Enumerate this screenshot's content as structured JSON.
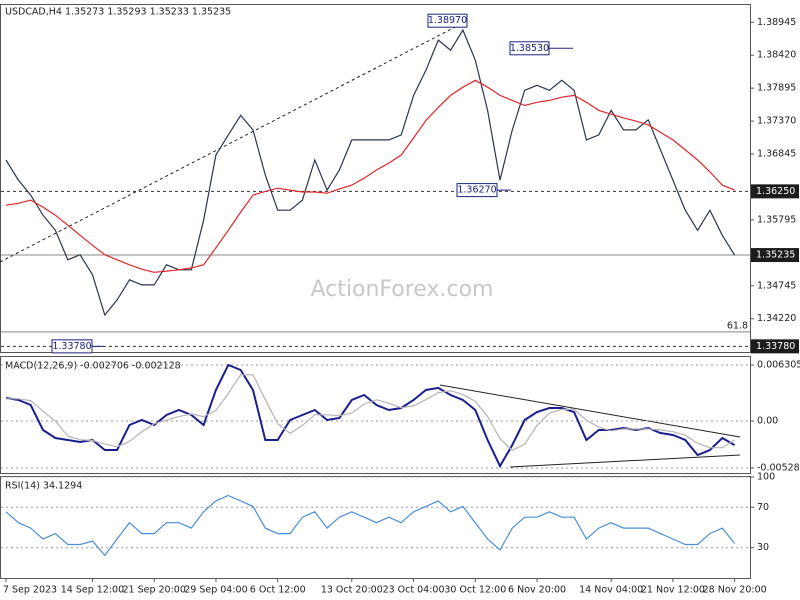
{
  "chart_data": [
    {
      "type": "line",
      "title": "USDCAD,H4  1.35273 1.35293 1.35233 1.35235",
      "watermark": "ActionForex.com",
      "series": [
        {
          "color": "#2b3550",
          "values": [
            1.3675,
            1.3643,
            1.3619,
            1.3587,
            1.3563,
            1.3516,
            1.3524,
            1.3492,
            1.3428,
            1.3452,
            1.3484,
            1.3476,
            1.3476,
            1.3508,
            1.35,
            1.35,
            1.3579,
            1.3683,
            1.3715,
            1.3746,
            1.3723,
            1.3651,
            1.3595,
            1.3595,
            1.3611,
            1.3675,
            1.3627,
            1.3659,
            1.3707,
            1.3707,
            1.3707,
            1.3707,
            1.3715,
            1.3778,
            1.3818,
            1.3866,
            1.385,
            1.3882,
            1.3834,
            1.3754,
            1.3643,
            1.3723,
            1.3786,
            1.3794,
            1.3786,
            1.3802,
            1.3786,
            1.3707,
            1.3715,
            1.3754,
            1.3723,
            1.3723,
            1.3739,
            1.3691,
            1.3643,
            1.3595,
            1.3563,
            1.3595,
            1.3555,
            1.35235
          ]
        },
        {
          "color": "#e0262b",
          "values": [
            1.3603,
            1.3606,
            1.3611,
            1.36,
            1.3587,
            1.3571,
            1.3555,
            1.3539,
            1.3524,
            1.3516,
            1.3508,
            1.3501,
            1.3496,
            1.3498,
            1.35,
            1.3503,
            1.3508,
            1.3535,
            1.3563,
            1.3592,
            1.3619,
            1.3625,
            1.363,
            1.3627,
            1.3624,
            1.3624,
            1.3622,
            1.3629,
            1.3635,
            1.3646,
            1.3659,
            1.367,
            1.3683,
            1.371,
            1.3738,
            1.3759,
            1.3778,
            1.3791,
            1.3802,
            1.3791,
            1.3778,
            1.377,
            1.3762,
            1.3767,
            1.377,
            1.3775,
            1.3778,
            1.3767,
            1.3754,
            1.3748,
            1.3742,
            1.3737,
            1.3731,
            1.3719,
            1.3707,
            1.3691,
            1.3675,
            1.3656,
            1.3635,
            1.3627
          ]
        }
      ],
      "ylim": [
        1.3369,
        1.3922
      ],
      "yticks": [
        1.38945,
        {
          "value": 1.3842,
          "label": "1.38420"
        },
        1.37895,
        {
          "value": 1.3737,
          "label": "1.37370"
        },
        1.36845,
        1.35795,
        1.34745,
        {
          "value": 1.3422,
          "label": "1.34220"
        }
      ],
      "grid": false,
      "levels": [
        {
          "value": 1.3625,
          "label": "1.36250",
          "style": "dashed",
          "box": true
        },
        {
          "value": 1.35235,
          "label": "1.35235",
          "style": "solid",
          "box": true
        },
        {
          "value": 1.3401,
          "label": "61.8",
          "style": "solid",
          "box": false
        },
        {
          "value": 1.3378,
          "label": "1.33780",
          "style": "dashed",
          "box": true
        }
      ],
      "annotations": [
        {
          "value": 1.3897,
          "label": "1.38970"
        },
        {
          "value": 1.3853,
          "label": "1.38530"
        },
        {
          "value": 1.3627,
          "label": "1.36270"
        },
        {
          "value": 1.3378,
          "label": "1.33780"
        }
      ]
    },
    {
      "type": "line",
      "title": "MACD(12,26,9) -0.002706 -0.002128",
      "series": [
        {
          "color": "#1a1f8f",
          "values": [
            0.00259,
            0.00236,
            0.0018,
            -0.00101,
            -0.00191,
            -0.00214,
            -0.00236,
            -0.00214,
            -0.00326,
            -0.00326,
            -0.00045,
            0.00011,
            -0.00045,
            0.00068,
            0.00124,
            0.00068,
            -0.00045,
            0.00349,
            0.0063,
            0.00574,
            0.00349,
            -0.00214,
            -0.00214,
            0.00011,
            0.00068,
            0.00124,
            0.00011,
            0.00034,
            0.00236,
            0.00293,
            0.0018,
            0.00124,
            0.00146,
            0.00236,
            0.00349,
            0.00372,
            0.00293,
            0.00236,
            0.00124,
            -0.00214,
            -0.00507,
            -0.0027,
            0.00011,
            0.00101,
            0.00146,
            0.00146,
            0.00101,
            -0.00214,
            -0.00101,
            -0.00101,
            -0.00079,
            -0.00101,
            -0.00079,
            -0.00135,
            -0.00158,
            -0.00214,
            -0.00383,
            -0.00326,
            -0.00191,
            -0.002706
          ]
        },
        {
          "color": "#b4b4b4",
          "values": [
            0.0025,
            0.0025,
            0.0023,
            0.0011,
            0.0,
            -0.0017,
            -0.0021,
            -0.0022,
            -0.0026,
            -0.0029,
            -0.0023,
            -0.0012,
            -0.0003,
            0.0001,
            0.0005,
            0.0008,
            0.0005,
            0.0012,
            0.0031,
            0.0052,
            0.0052,
            0.0024,
            -0.0003,
            -0.0014,
            -0.0005,
            0.0007,
            0.0007,
            0.0006,
            0.0009,
            0.0019,
            0.0024,
            0.002,
            0.0015,
            0.0017,
            0.0024,
            0.0032,
            0.0034,
            0.003,
            0.0022,
            0.0005,
            -0.002,
            -0.0033,
            -0.0026,
            -0.0005,
            0.0009,
            0.0013,
            0.0013,
            0.0001,
            -0.0007,
            -0.0011,
            -0.0009,
            -0.0009,
            -0.0009,
            -0.001,
            -0.0012,
            -0.0016,
            -0.0025,
            -0.003,
            -0.003,
            -0.002128
          ]
        }
      ],
      "ylim": [
        -0.00585,
        0.0072
      ],
      "yticks": [
        0.006305,
        {
          "value": 0,
          "label": "0.00"
        },
        -0.005283
      ],
      "grid": true
    },
    {
      "type": "line",
      "title": "RSI(14) 34.1294",
      "categories": [
        "7 Sep 2023",
        null,
        null,
        null,
        null,
        null,
        null,
        "14 Sep 12:00",
        null,
        null,
        null,
        null,
        "21 Sep 20:00",
        null,
        null,
        null,
        null,
        "29 Sep 04:00",
        null,
        null,
        null,
        null,
        "6 Oct 12:00",
        null,
        null,
        null,
        null,
        null,
        "13 Oct 20:00",
        null,
        null,
        null,
        null,
        "23 Oct 04:00",
        null,
        null,
        null,
        null,
        "30 Oct 12:00",
        null,
        null,
        null,
        null,
        "6 Nov 20:00",
        null,
        null,
        null,
        null,
        null,
        "14 Nov 04:00",
        null,
        null,
        null,
        null,
        "21 Nov 12:00",
        null,
        null,
        null,
        null,
        "28 Nov 20:00"
      ],
      "series": [
        {
          "color": "#4a8fd8",
          "values": [
            65.5,
            54.8,
            49.4,
            38.6,
            44,
            33.2,
            33.2,
            36.5,
            22.5,
            38.6,
            54.8,
            44,
            44,
            54.8,
            54.8,
            49.4,
            65.5,
            76.3,
            81.7,
            76.3,
            70.9,
            49.4,
            44,
            44,
            60.2,
            65.5,
            49.4,
            60.2,
            65.5,
            60.2,
            54.8,
            60.2,
            54.8,
            65.5,
            70.9,
            76.3,
            65.5,
            70.9,
            54.8,
            38.6,
            27.8,
            49.4,
            60.2,
            60.2,
            65.5,
            60.2,
            60.2,
            38.6,
            49.4,
            54.8,
            49.4,
            49.4,
            49.4,
            44,
            38.6,
            33.2,
            33.2,
            44,
            49.4,
            34.1294
          ]
        }
      ],
      "ylim": [
        0,
        100
      ],
      "yticks": [
        100,
        70,
        30
      ],
      "grid": true
    }
  ]
}
